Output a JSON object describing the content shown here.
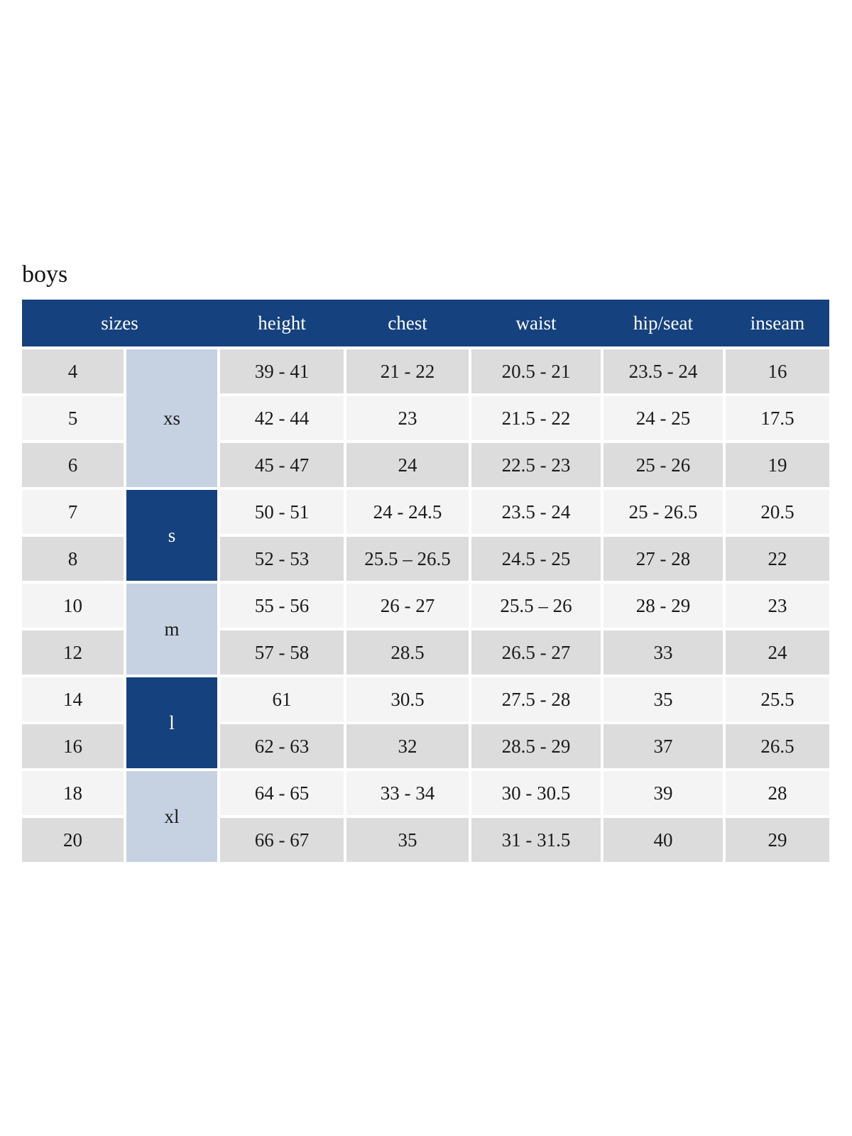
{
  "title": "boys",
  "colors": {
    "header_bg": "#15417e",
    "group_dark_bg": "#15417e",
    "group_light_bg": "#c6d2e2",
    "row_gray_bg": "#dcdcdc",
    "row_light_bg": "#f4f4f4",
    "header_text": "#ffffff",
    "body_text": "#1b1b1b"
  },
  "chart_data": {
    "type": "table",
    "title": "boys",
    "columns": [
      "sizes",
      "height",
      "chest",
      "waist",
      "hip/seat",
      "inseam"
    ],
    "size_groups": [
      {
        "label": "xs",
        "row_start": 0,
        "row_span": 3,
        "style": "light"
      },
      {
        "label": "s",
        "row_start": 3,
        "row_span": 2,
        "style": "dark"
      },
      {
        "label": "m",
        "row_start": 5,
        "row_span": 2,
        "style": "light"
      },
      {
        "label": "l",
        "row_start": 7,
        "row_span": 2,
        "style": "dark"
      },
      {
        "label": "xl",
        "row_start": 9,
        "row_span": 2,
        "style": "light"
      }
    ],
    "rows": [
      {
        "size": "4",
        "height": "39 - 41",
        "chest": "21 - 22",
        "waist": "20.5 - 21",
        "hip_seat": "23.5 - 24",
        "inseam": "16"
      },
      {
        "size": "5",
        "height": "42 - 44",
        "chest": "23",
        "waist": "21.5 - 22",
        "hip_seat": "24 - 25",
        "inseam": "17.5"
      },
      {
        "size": "6",
        "height": "45 - 47",
        "chest": "24",
        "waist": "22.5 - 23",
        "hip_seat": "25 - 26",
        "inseam": "19"
      },
      {
        "size": "7",
        "height": "50 - 51",
        "chest": "24 - 24.5",
        "waist": "23.5 - 24",
        "hip_seat": "25 - 26.5",
        "inseam": "20.5"
      },
      {
        "size": "8",
        "height": "52 - 53",
        "chest": "25.5 – 26.5",
        "waist": "24.5 - 25",
        "hip_seat": "27 - 28",
        "inseam": "22"
      },
      {
        "size": "10",
        "height": "55 - 56",
        "chest": "26 - 27",
        "waist": "25.5 – 26",
        "hip_seat": "28 - 29",
        "inseam": "23"
      },
      {
        "size": "12",
        "height": "57 - 58",
        "chest": "28.5",
        "waist": "26.5 - 27",
        "hip_seat": "33",
        "inseam": "24"
      },
      {
        "size": "14",
        "height": "61",
        "chest": "30.5",
        "waist": "27.5 - 28",
        "hip_seat": "35",
        "inseam": "25.5"
      },
      {
        "size": "16",
        "height": "62 - 63",
        "chest": "32",
        "waist": "28.5 - 29",
        "hip_seat": "37",
        "inseam": "26.5"
      },
      {
        "size": "18",
        "height": "64 - 65",
        "chest": "33 - 34",
        "waist": "30 - 30.5",
        "hip_seat": "39",
        "inseam": "28"
      },
      {
        "size": "20",
        "height": "66 - 67",
        "chest": "35",
        "waist": "31 - 31.5",
        "hip_seat": "40",
        "inseam": "29"
      }
    ]
  }
}
